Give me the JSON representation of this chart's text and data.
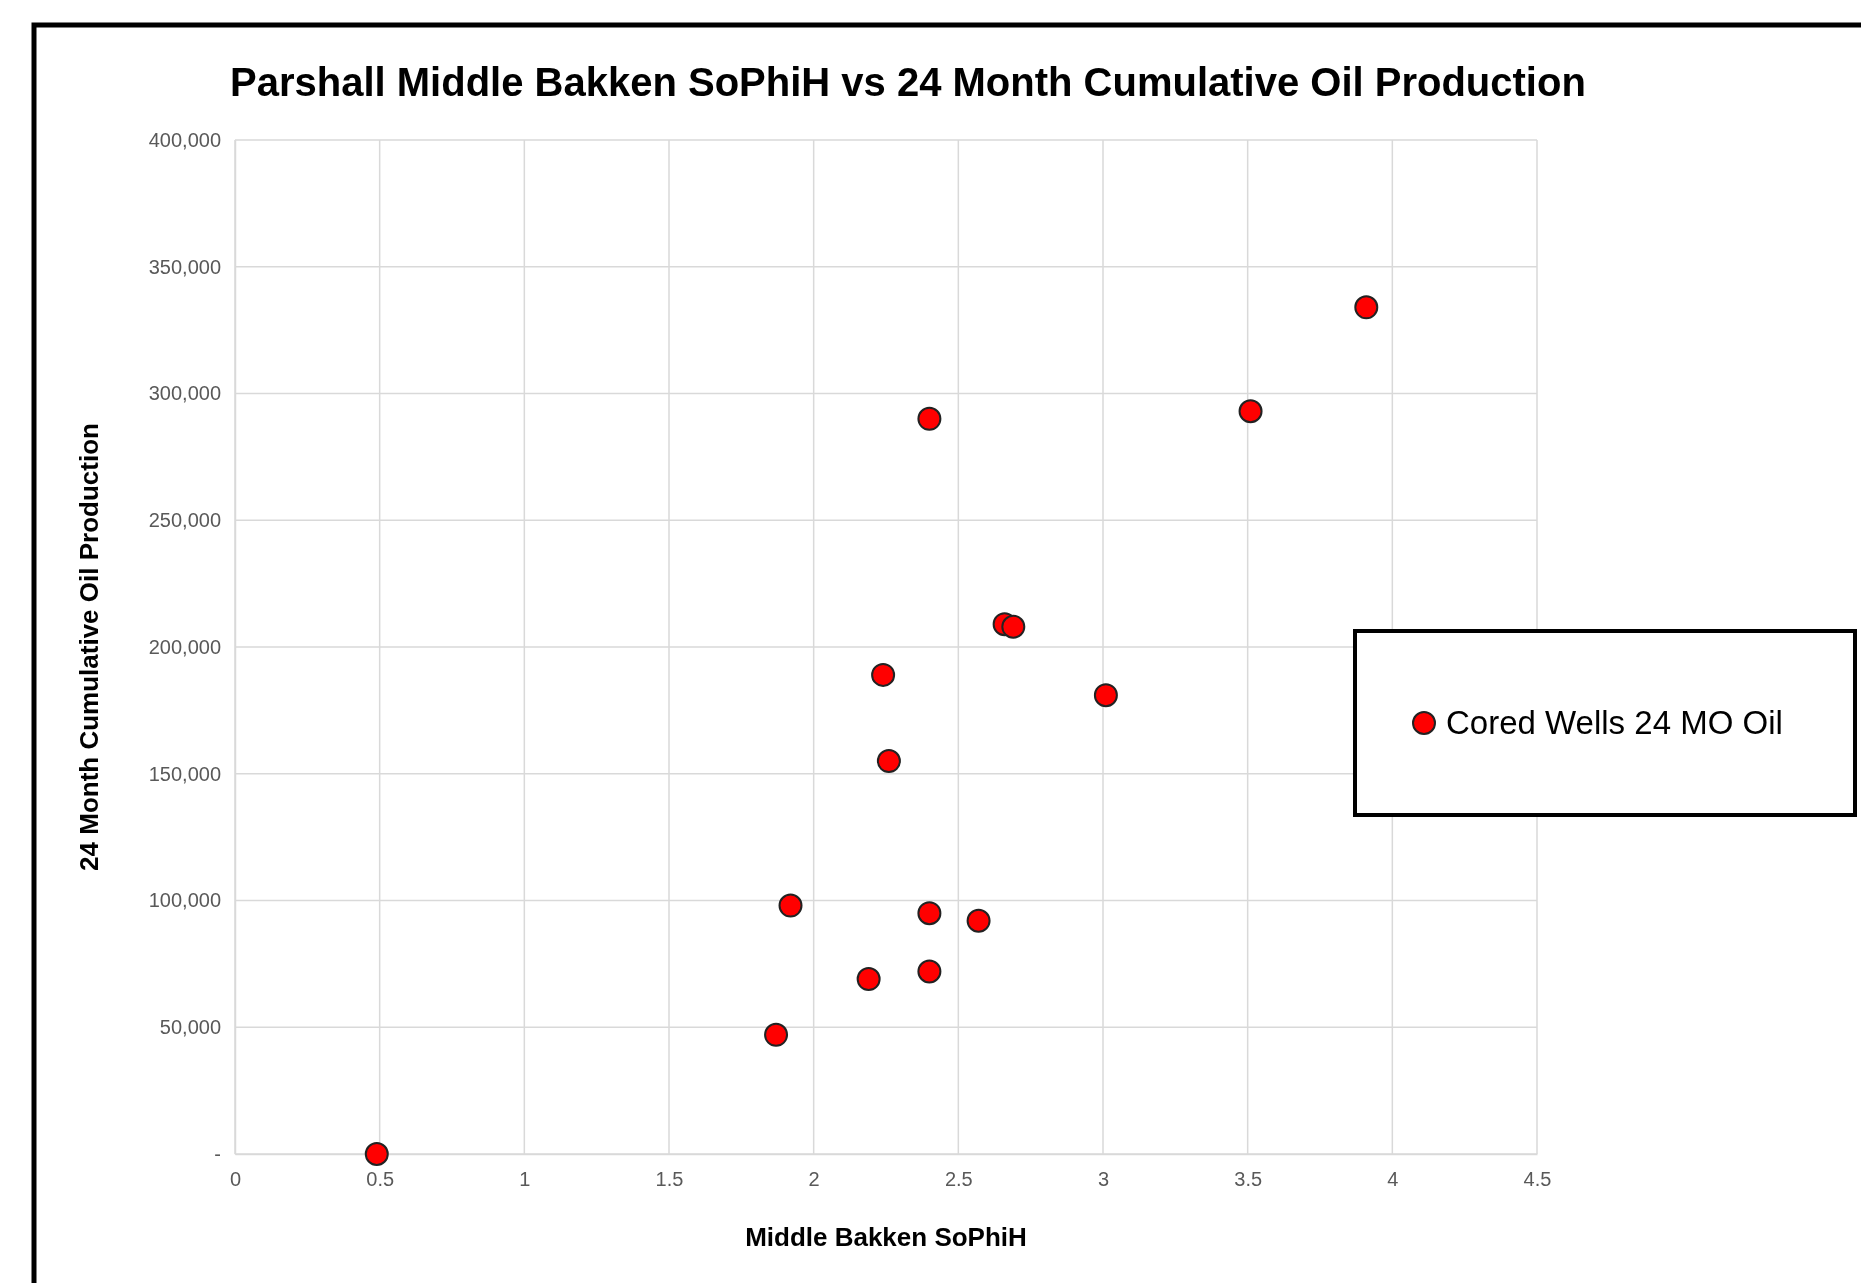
{
  "chart_data": {
    "type": "scatter",
    "title": "Parshall Middle Bakken SoPhiH vs 24 Month Cumulative Oil Production",
    "xlabel": "Middle Bakken SoPhiH",
    "ylabel": "24 Month Cumulative Oil Production",
    "xlim": [
      0,
      4.5
    ],
    "xticks": [
      0,
      0.5,
      1,
      1.5,
      2,
      2.5,
      3,
      3.5,
      4,
      4.5
    ],
    "ylim": [
      0,
      400000
    ],
    "yticks": [
      {
        "value": 0,
        "label": "-"
      },
      {
        "value": 50000,
        "label": "50,000"
      },
      {
        "value": 100000,
        "label": "100,000"
      },
      {
        "value": 150000,
        "label": "150,000"
      },
      {
        "value": 200000,
        "label": "200,000"
      },
      {
        "value": 250000,
        "label": "250,000"
      },
      {
        "value": 300000,
        "label": "300,000"
      },
      {
        "value": 350000,
        "label": "350,000"
      },
      {
        "value": 400000,
        "label": "400,000"
      }
    ],
    "grid": true,
    "legend": "right",
    "marker": "circle",
    "series": [
      {
        "name": "Cored Wells 24 MO Oil",
        "color": "#ff0000",
        "x": [
          0.49,
          1.87,
          1.92,
          2.19,
          2.4,
          2.4,
          2.57,
          2.26,
          2.24,
          2.4,
          2.66,
          2.69,
          3.01,
          3.51,
          3.91
        ],
        "values": [
          0,
          47000,
          98000,
          69000,
          72000,
          95000,
          92000,
          155000,
          189000,
          290000,
          209000,
          208000,
          181000,
          293000,
          334000
        ]
      }
    ]
  }
}
